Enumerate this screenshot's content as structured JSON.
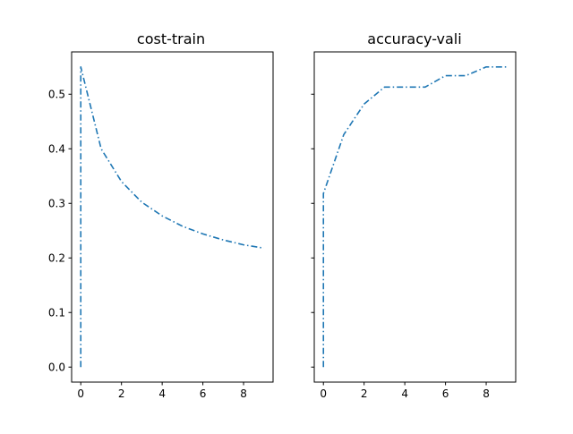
{
  "chart_data": [
    {
      "type": "line",
      "title": "cost-train",
      "xlabel": "",
      "ylabel": "",
      "xlim": [
        -0.45,
        9.45
      ],
      "ylim": [
        -0.0275,
        0.5775
      ],
      "xticks": [
        0,
        2,
        4,
        6,
        8
      ],
      "xtick_labels": [
        "0",
        "2",
        "4",
        "6",
        "8"
      ],
      "yticks": [
        0.0,
        0.1,
        0.2,
        0.3,
        0.4,
        0.5
      ],
      "ytick_labels": [
        "0.0",
        "0.1",
        "0.2",
        "0.3",
        "0.4",
        "0.5"
      ],
      "show_ytick_labels": true,
      "grid": false,
      "color": "#1f77b4",
      "series": [
        {
          "x": [
            0,
            0,
            1,
            2,
            3,
            4,
            5,
            6,
            7,
            8,
            9
          ],
          "y": [
            0.0,
            0.55,
            0.4,
            0.34,
            0.302,
            0.277,
            0.258,
            0.244,
            0.233,
            0.224,
            0.218
          ]
        }
      ]
    },
    {
      "type": "line",
      "title": "accuracy-vali",
      "xlabel": "",
      "ylabel": "",
      "xlim": [
        -0.45,
        9.45
      ],
      "ylim": [
        -0.0275,
        0.5775
      ],
      "xticks": [
        0,
        2,
        4,
        6,
        8
      ],
      "xtick_labels": [
        "0",
        "2",
        "4",
        "6",
        "8"
      ],
      "yticks": [
        0.0,
        0.1,
        0.2,
        0.3,
        0.4,
        0.5
      ],
      "ytick_labels": [],
      "show_ytick_labels": false,
      "grid": false,
      "color": "#1f77b4",
      "series": [
        {
          "x": [
            0,
            0,
            1,
            2,
            3,
            4,
            5,
            6,
            7,
            8,
            9
          ],
          "y": [
            0.0,
            0.318,
            0.426,
            0.482,
            0.513,
            0.513,
            0.513,
            0.534,
            0.534,
            0.55,
            0.55
          ]
        }
      ]
    }
  ]
}
